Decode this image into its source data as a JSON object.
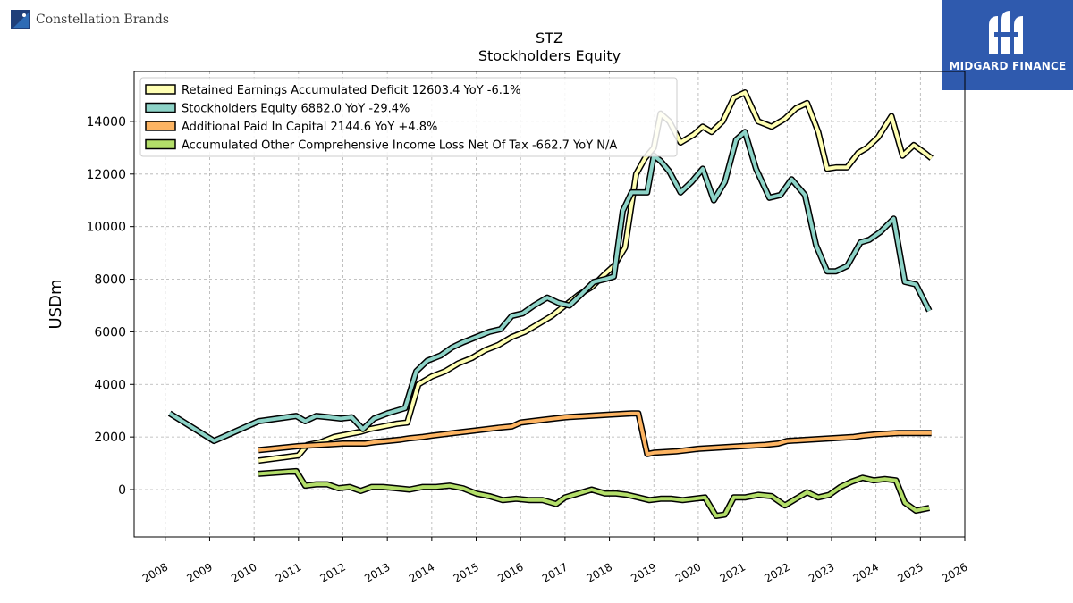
{
  "brand": {
    "company": "Constellation Brands",
    "badge": "MIDGARD FINANCE",
    "badge_color": "#2f5aae"
  },
  "chart_data": {
    "type": "line",
    "title": "STZ",
    "subtitle": "Stockholders  Equity",
    "xlabel": "",
    "ylabel": "USDm",
    "xlim": [
      2007.3,
      2026.0
    ],
    "ylim": [
      -1800,
      15900
    ],
    "grid": true,
    "legend_position": "top-left",
    "x_ticks": [
      2008,
      2009,
      2010,
      2011,
      2012,
      2013,
      2014,
      2015,
      2016,
      2017,
      2018,
      2019,
      2020,
      2021,
      2022,
      2023,
      2024,
      2025,
      2026
    ],
    "y_ticks": [
      0,
      2000,
      4000,
      6000,
      8000,
      10000,
      12000,
      14000
    ],
    "series": [
      {
        "name": "Retained Earnings Accumulated Deficit",
        "legend": "Retained Earnings Accumulated Deficit  12603.4 YoY -6.1%",
        "color": "#ffffb3",
        "x": [
          2010.1,
          2011.0,
          2011.2,
          2011.5,
          2011.8,
          2012.1,
          2012.4,
          2012.6,
          2012.9,
          2013.2,
          2013.45,
          2013.7,
          2014.0,
          2014.3,
          2014.6,
          2014.9,
          2015.2,
          2015.5,
          2015.8,
          2016.1,
          2016.4,
          2016.7,
          2017.0,
          2017.3,
          2017.6,
          2017.9,
          2018.1,
          2018.35,
          2018.6,
          2018.8,
          2019.0,
          2019.15,
          2019.35,
          2019.6,
          2019.9,
          2020.1,
          2020.3,
          2020.55,
          2020.8,
          2021.05,
          2021.35,
          2021.65,
          2021.95,
          2022.2,
          2022.45,
          2022.7,
          2022.9,
          2023.1,
          2023.35,
          2023.6,
          2023.8,
          2024.05,
          2024.35,
          2024.6,
          2024.85,
          2025.1,
          2025.25
        ],
        "values": [
          1100,
          1300,
          1700,
          1800,
          2000,
          2100,
          2200,
          2300,
          2400,
          2500,
          2550,
          4000,
          4300,
          4500,
          4800,
          5000,
          5300,
          5500,
          5800,
          6000,
          6300,
          6600,
          7000,
          7400,
          7700,
          8200,
          8500,
          9200,
          12000,
          12600,
          13000,
          14300,
          14000,
          13200,
          13500,
          13800,
          13600,
          14000,
          14900,
          15100,
          14000,
          13800,
          14100,
          14500,
          14700,
          13600,
          12200,
          12250,
          12250,
          12800,
          13000,
          13400,
          14200,
          12700,
          13100,
          12800,
          12600
        ]
      },
      {
        "name": "Stockholders Equity",
        "legend": "Stockholders Equity  6882.0 YoY -29.4%",
        "color": "#8dd3c7",
        "x": [
          2008.1,
          2009.1,
          2010.1,
          2010.95,
          2011.15,
          2011.4,
          2011.7,
          2011.95,
          2012.2,
          2012.45,
          2012.7,
          2013.0,
          2013.4,
          2013.65,
          2013.9,
          2014.2,
          2014.45,
          2014.7,
          2015.0,
          2015.3,
          2015.55,
          2015.8,
          2016.05,
          2016.3,
          2016.6,
          2016.85,
          2017.1,
          2017.35,
          2017.65,
          2017.9,
          2018.1,
          2018.3,
          2018.5,
          2018.65,
          2018.85,
          2019.0,
          2019.15,
          2019.35,
          2019.6,
          2019.85,
          2020.1,
          2020.35,
          2020.6,
          2020.85,
          2021.05,
          2021.3,
          2021.6,
          2021.85,
          2022.1,
          2022.4,
          2022.65,
          2022.9,
          2023.1,
          2023.35,
          2023.65,
          2023.85,
          2024.1,
          2024.4,
          2024.65,
          2024.9,
          2025.2
        ],
        "values": [
          2900,
          1850,
          2600,
          2800,
          2600,
          2800,
          2750,
          2700,
          2750,
          2300,
          2700,
          2900,
          3100,
          4500,
          4900,
          5100,
          5400,
          5600,
          5800,
          6000,
          6100,
          6600,
          6700,
          7000,
          7300,
          7100,
          7000,
          7400,
          7900,
          8000,
          8100,
          10600,
          11300,
          11300,
          11300,
          12700,
          12500,
          12100,
          11300,
          11700,
          12200,
          11000,
          11700,
          13300,
          13600,
          12200,
          11100,
          11200,
          11800,
          11200,
          9300,
          8300,
          8300,
          8500,
          9400,
          9500,
          9800,
          10300,
          7900,
          7800,
          6800
        ]
      },
      {
        "name": "Additional Paid In Capital",
        "legend": "Additional Paid In Capital  2144.6 YoY +4.8%",
        "color": "#fdb462",
        "x": [
          2010.1,
          2011.0,
          2011.5,
          2012.0,
          2012.5,
          2012.7,
          2013.0,
          2013.3,
          2013.5,
          2013.8,
          2014.0,
          2014.5,
          2015.0,
          2015.5,
          2015.8,
          2016.0,
          2016.5,
          2017.0,
          2017.5,
          2018.0,
          2018.5,
          2018.65,
          2018.85,
          2019.0,
          2019.5,
          2020.0,
          2020.5,
          2021.0,
          2021.5,
          2021.8,
          2022.0,
          2022.5,
          2023.0,
          2023.5,
          2023.7,
          2024.0,
          2024.5,
          2024.8,
          2025.0,
          2025.25
        ],
        "values": [
          1500,
          1650,
          1700,
          1750,
          1750,
          1800,
          1850,
          1900,
          1950,
          2000,
          2050,
          2150,
          2250,
          2350,
          2400,
          2550,
          2650,
          2750,
          2800,
          2850,
          2900,
          2900,
          1350,
          1400,
          1450,
          1550,
          1600,
          1650,
          1700,
          1750,
          1850,
          1900,
          1950,
          2000,
          2050,
          2100,
          2150,
          2150,
          2150,
          2150
        ]
      },
      {
        "name": "Accumulated Other Comprehensive Income Loss Net Of Tax",
        "legend": "Accumulated Other Comprehensive Income Loss Net Of Tax  -662.7 YoY N/A",
        "color": "#b3de69",
        "x": [
          2010.1,
          2010.95,
          2011.15,
          2011.4,
          2011.65,
          2011.9,
          2012.15,
          2012.4,
          2012.65,
          2012.9,
          2013.2,
          2013.5,
          2013.8,
          2014.1,
          2014.4,
          2014.7,
          2015.0,
          2015.3,
          2015.6,
          2015.9,
          2016.2,
          2016.5,
          2016.8,
          2017.0,
          2017.3,
          2017.6,
          2017.9,
          2018.15,
          2018.4,
          2018.65,
          2018.9,
          2019.15,
          2019.4,
          2019.65,
          2019.9,
          2020.15,
          2020.4,
          2020.6,
          2020.8,
          2021.05,
          2021.35,
          2021.65,
          2021.95,
          2022.2,
          2022.45,
          2022.7,
          2022.95,
          2023.2,
          2023.45,
          2023.7,
          2023.95,
          2024.2,
          2024.45,
          2024.65,
          2024.9,
          2025.2
        ],
        "values": [
          600,
          700,
          150,
          200,
          200,
          50,
          100,
          -50,
          100,
          100,
          50,
          0,
          100,
          100,
          150,
          50,
          -150,
          -250,
          -400,
          -350,
          -400,
          -400,
          -550,
          -300,
          -150,
          0,
          -150,
          -150,
          -200,
          -300,
          -400,
          -350,
          -350,
          -400,
          -350,
          -300,
          -1000,
          -950,
          -300,
          -300,
          -200,
          -250,
          -600,
          -350,
          -100,
          -300,
          -200,
          100,
          300,
          450,
          350,
          400,
          350,
          -500,
          -800,
          -700
        ]
      }
    ]
  }
}
